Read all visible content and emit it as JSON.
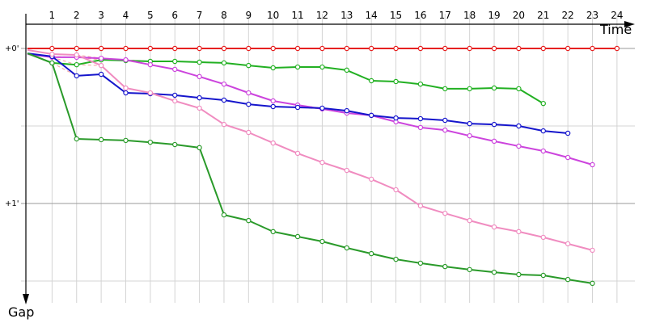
{
  "chart_data": {
    "type": "line",
    "xlabel": "Time",
    "ylabel": "Gap",
    "x_ticks": [
      "1",
      "2",
      "3",
      "4",
      "5",
      "6",
      "7",
      "8",
      "9",
      "10",
      "11",
      "12",
      "13",
      "14",
      "15",
      "16",
      "17",
      "18",
      "19",
      "20",
      "21",
      "22",
      "23",
      "24"
    ],
    "y_ticks": [
      {
        "label": "+0'",
        "value": 0
      },
      {
        "label": "+1'",
        "value": 60
      }
    ],
    "grid": true,
    "ylim": [
      0,
      90
    ],
    "xlim": [
      0,
      24
    ],
    "series": [
      {
        "color": "#e62020",
        "values": [
          0.0,
          0.0,
          0.0,
          0.0,
          0.0,
          0.0,
          0.0,
          0.0,
          0.0,
          0.0,
          0.0,
          0.0,
          0.0,
          0.0,
          0.0,
          0.0,
          0.0,
          0.0,
          0.0,
          0.0,
          0.0,
          0.0,
          0.0,
          0.0,
          0.0
        ]
      },
      {
        "color": "#22b022",
        "values": [
          1.9,
          5.6,
          6.3,
          4.4,
          4.7,
          5.0,
          5.0,
          5.3,
          5.6,
          6.6,
          7.5,
          7.2,
          7.2,
          8.4,
          12.5,
          12.8,
          13.8,
          15.6,
          15.6,
          15.3,
          15.6,
          21.3
        ]
      },
      {
        "color": "#cc44dd",
        "values": [
          2.2,
          3.4,
          3.4,
          3.8,
          4.4,
          6.3,
          8.1,
          10.9,
          13.8,
          17.2,
          20.3,
          21.9,
          23.4,
          25.0,
          25.9,
          28.4,
          30.6,
          31.6,
          33.8,
          35.9,
          37.8,
          39.7,
          42.2,
          45.0
        ]
      },
      {
        "color": "#1515cc",
        "values": [
          1.9,
          3.1,
          10.6,
          10.0,
          17.2,
          17.5,
          18.1,
          19.1,
          20.0,
          21.6,
          22.5,
          22.8,
          23.1,
          24.1,
          25.9,
          26.9,
          27.2,
          27.8,
          29.1,
          29.4,
          30.0,
          31.9,
          32.8
        ]
      },
      {
        "color": "#f08cc0",
        "values": [
          0.6,
          2.2,
          2.5,
          6.6,
          15.3,
          17.2,
          20.3,
          23.1,
          29.4,
          32.5,
          36.6,
          40.6,
          44.1,
          47.2,
          50.6,
          54.7,
          60.9,
          63.8,
          66.6,
          69.1,
          70.9,
          73.1,
          75.6,
          78.1
        ]
      },
      {
        "color": "#2a9a2a",
        "values": [
          1.9,
          5.6,
          35.0,
          35.3,
          35.6,
          36.3,
          37.2,
          38.4,
          64.4,
          66.6,
          70.9,
          72.8,
          74.7,
          77.2,
          79.4,
          81.6,
          83.1,
          84.4,
          85.6,
          86.6,
          87.5,
          87.8,
          89.4,
          90.9
        ]
      }
    ]
  }
}
